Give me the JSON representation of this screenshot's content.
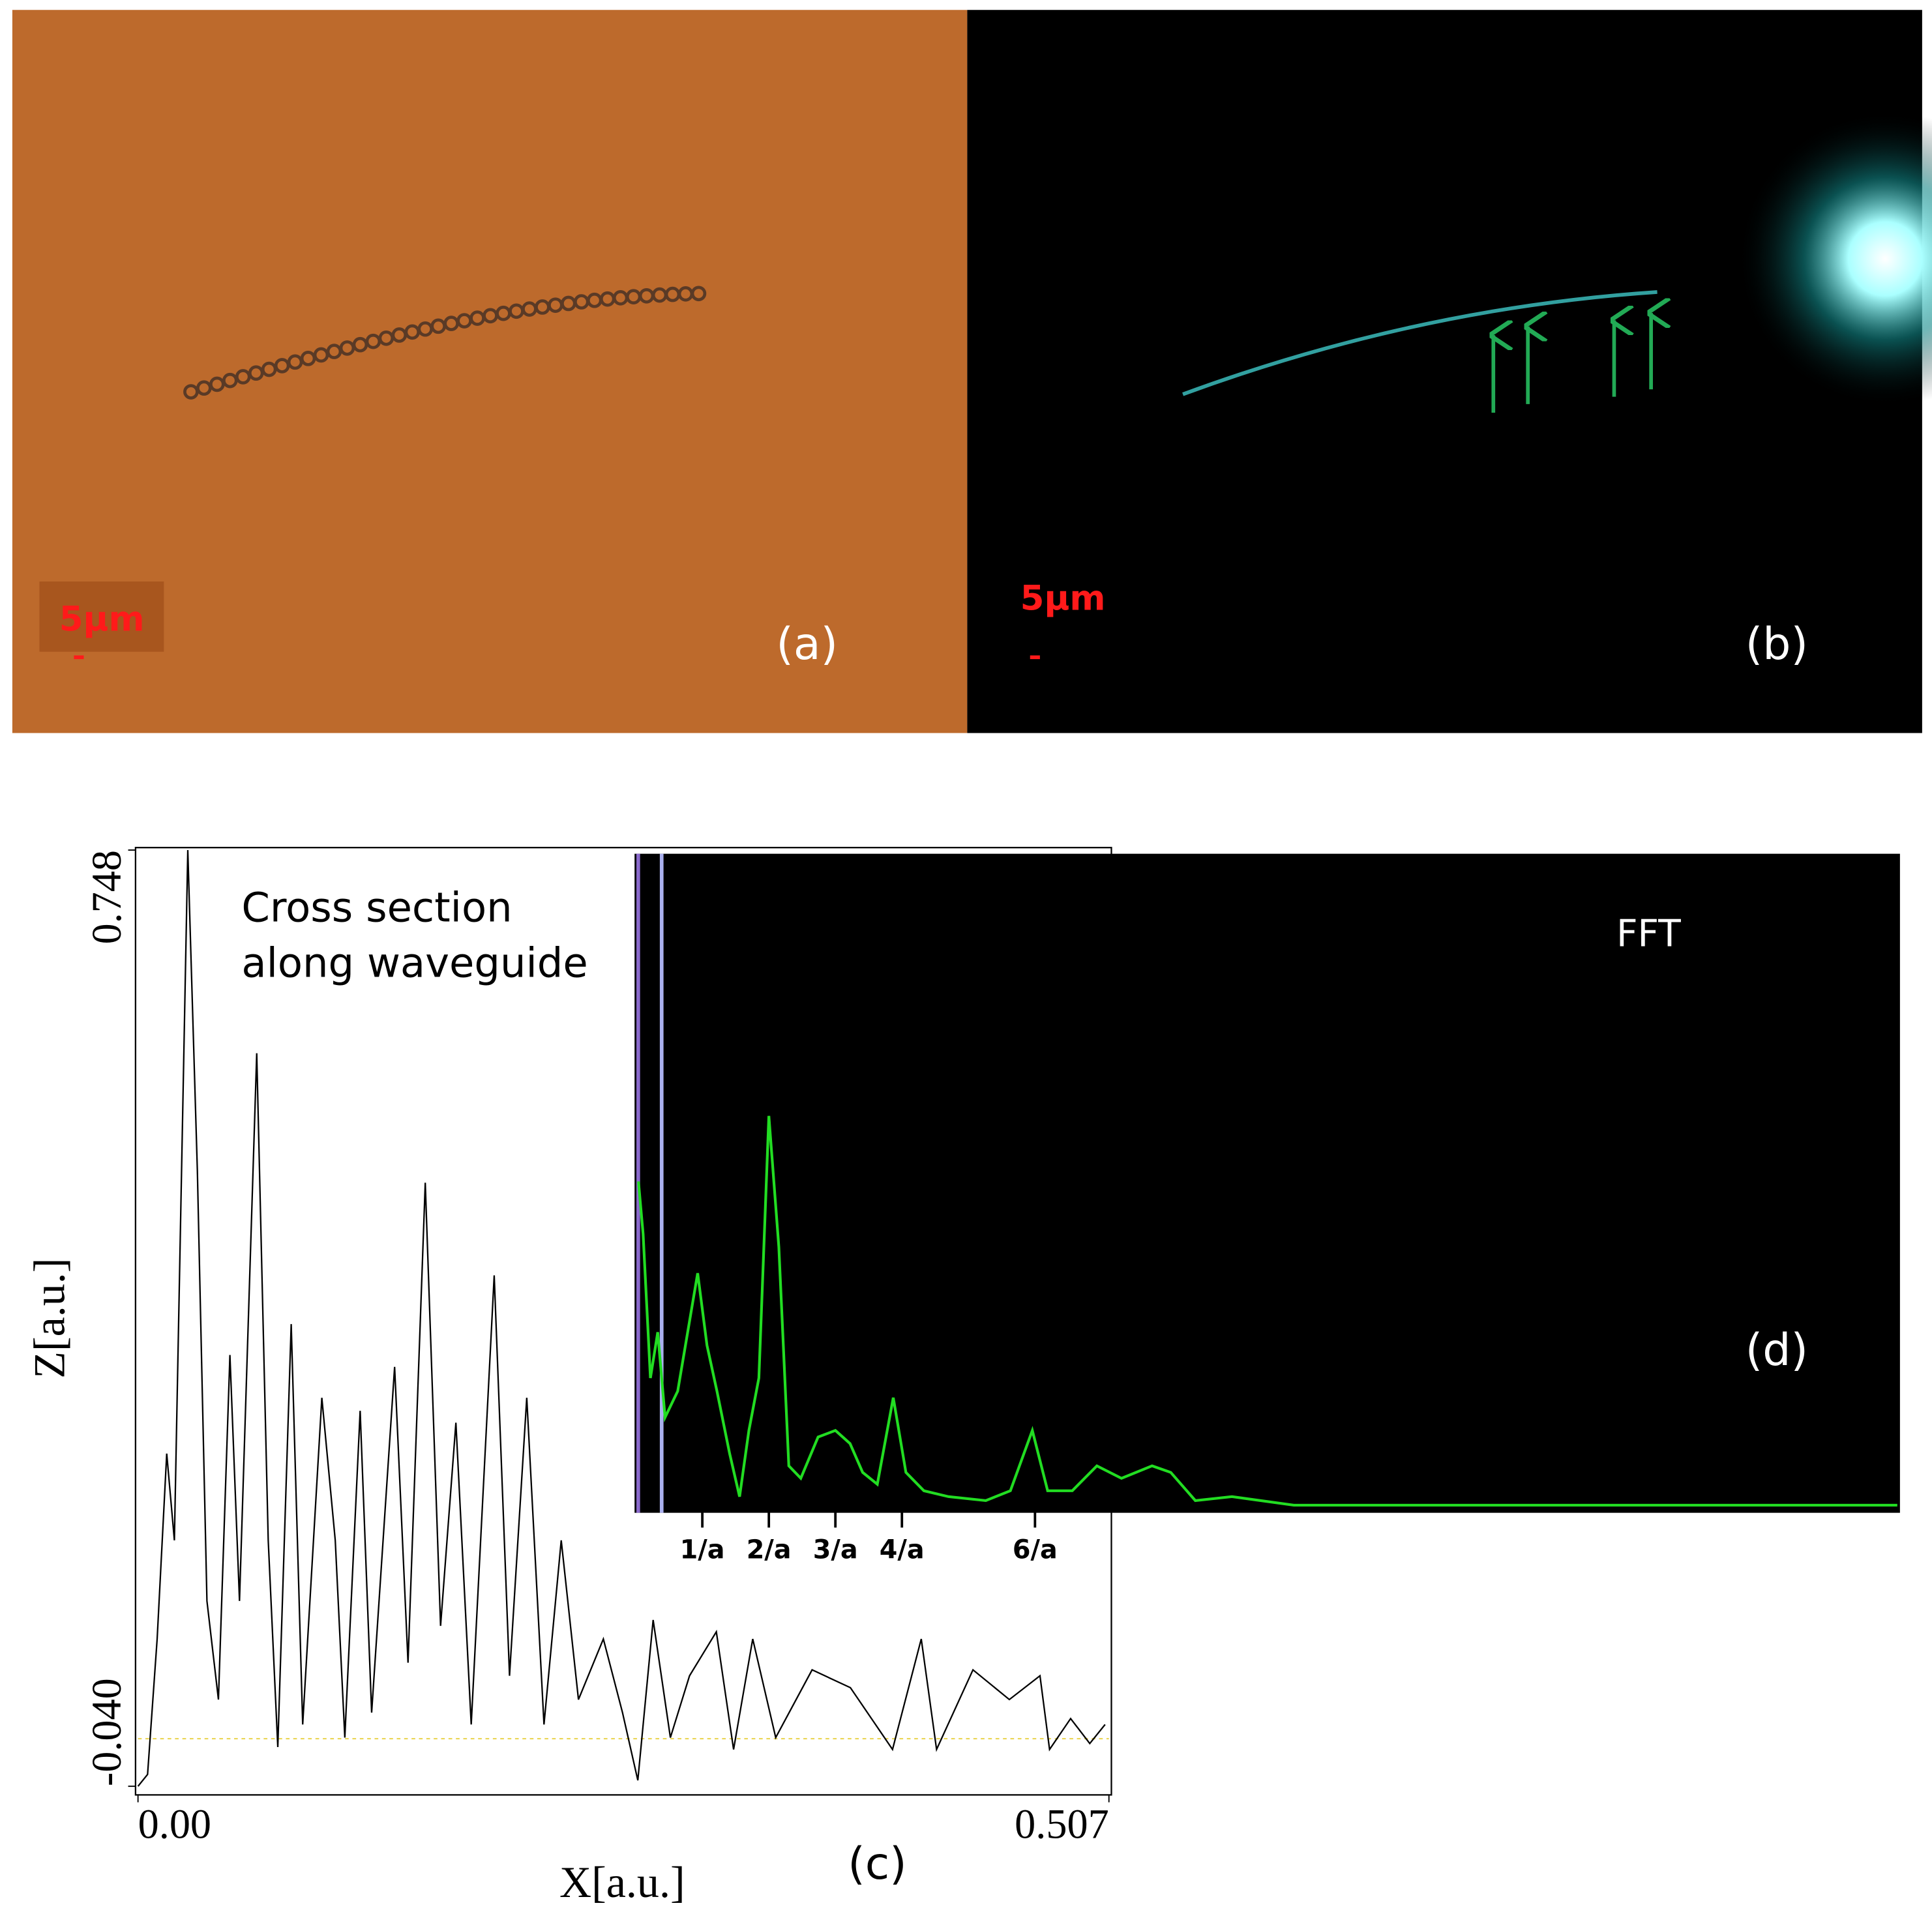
{
  "panels": {
    "a": {
      "label": "(a)",
      "scale_bar": "5μm"
    },
    "b": {
      "label": "(b)",
      "scale_bar": "5μm"
    }
  },
  "chart_data": [
    {
      "type": "line",
      "title": [
        "Cross section",
        "along waveguide"
      ],
      "panel_label": "(c)",
      "x_label": "X[a.u.]",
      "y_label": "Z[a.u.]",
      "color": "#000000",
      "x": [
        0,
        0.005,
        0.01,
        0.015,
        0.019,
        0.026,
        0.031,
        0.036,
        0.042,
        0.048,
        0.053,
        0.062,
        0.068,
        0.073,
        0.08,
        0.086,
        0.096,
        0.103,
        0.108,
        0.116,
        0.122,
        0.134,
        0.141,
        0.15,
        0.158,
        0.166,
        0.174,
        0.186,
        0.194,
        0.203,
        0.212,
        0.221,
        0.23,
        0.243,
        0.253,
        0.261,
        0.269,
        0.278,
        0.288,
        0.302,
        0.311,
        0.321,
        0.333,
        0.352,
        0.372,
        0.394,
        0.409,
        0.417,
        0.436,
        0.455,
        0.471,
        0.476,
        0.487,
        0.497,
        0.505
      ],
      "values": [
        -0.04,
        -0.03,
        0.084,
        0.24,
        0.167,
        0.748,
        0.478,
        0.116,
        0.033,
        0.323,
        0.116,
        0.577,
        0.167,
        -0.007,
        0.349,
        0.012,
        0.287,
        0.167,
        0.001,
        0.276,
        0.022,
        0.313,
        0.064,
        0.468,
        0.095,
        0.266,
        0.012,
        0.39,
        0.053,
        0.287,
        0.012,
        0.167,
        0.033,
        0.084,
        0.022,
        -0.035,
        0.1,
        0.001,
        0.053,
        0.09,
        -0.009,
        0.084,
        0.001,
        0.058,
        0.043,
        -0.009,
        0.084,
        -0.009,
        0.058,
        0.033,
        0.053,
        -0.009,
        0.017,
        -0.004,
        0.012
      ],
      "xlim": [
        0,
        0.507
      ],
      "ylim": [
        -0.04,
        0.748
      ],
      "xticks": [
        {
          "value": 0,
          "label": "0.00"
        },
        0.507
      ],
      "yticks": [
        {
          "value": -0.04,
          "label": "-0.040"
        },
        0.748
      ]
    },
    {
      "type": "line",
      "title": "FFT",
      "panel_label": "(d)",
      "color": "#22dd22",
      "x": [
        0.04,
        0.11,
        0.22,
        0.33,
        0.44,
        0.63,
        0.78,
        0.93,
        1.07,
        1.22,
        1.41,
        1.56,
        1.7,
        1.85,
        2.0,
        2.15,
        2.3,
        2.48,
        2.74,
        3.0,
        3.22,
        3.41,
        3.63,
        3.87,
        4.06,
        4.33,
        4.7,
        5.26,
        5.63,
        5.96,
        6.19,
        6.56,
        6.93,
        7.3,
        7.76,
        8.04,
        8.41,
        8.96,
        9.89,
        11.74,
        14.52,
        17.3,
        18.96
      ],
      "values": [
        0.5,
        0.42,
        0.2,
        0.27,
        0.14,
        0.18,
        0.27,
        0.36,
        0.25,
        0.18,
        0.085,
        0.019,
        0.12,
        0.2,
        0.6,
        0.4,
        0.066,
        0.047,
        0.11,
        0.12,
        0.1,
        0.056,
        0.038,
        0.17,
        0.056,
        0.028,
        0.019,
        0.013,
        0.028,
        0.12,
        0.028,
        0.028,
        0.066,
        0.047,
        0.066,
        0.056,
        0.013,
        0.019,
        0.006,
        0.006,
        0.006,
        0.006,
        0.006
      ],
      "xlim": [
        0,
        19
      ],
      "ylim": [
        0,
        1
      ],
      "xticks": [
        {
          "value": 1,
          "label": "1/a"
        },
        {
          "value": 2,
          "label": "2/a"
        },
        {
          "value": 3,
          "label": "3/a"
        },
        {
          "value": 4,
          "label": "4/a"
        },
        {
          "value": 6,
          "label": "6/a"
        }
      ]
    }
  ]
}
